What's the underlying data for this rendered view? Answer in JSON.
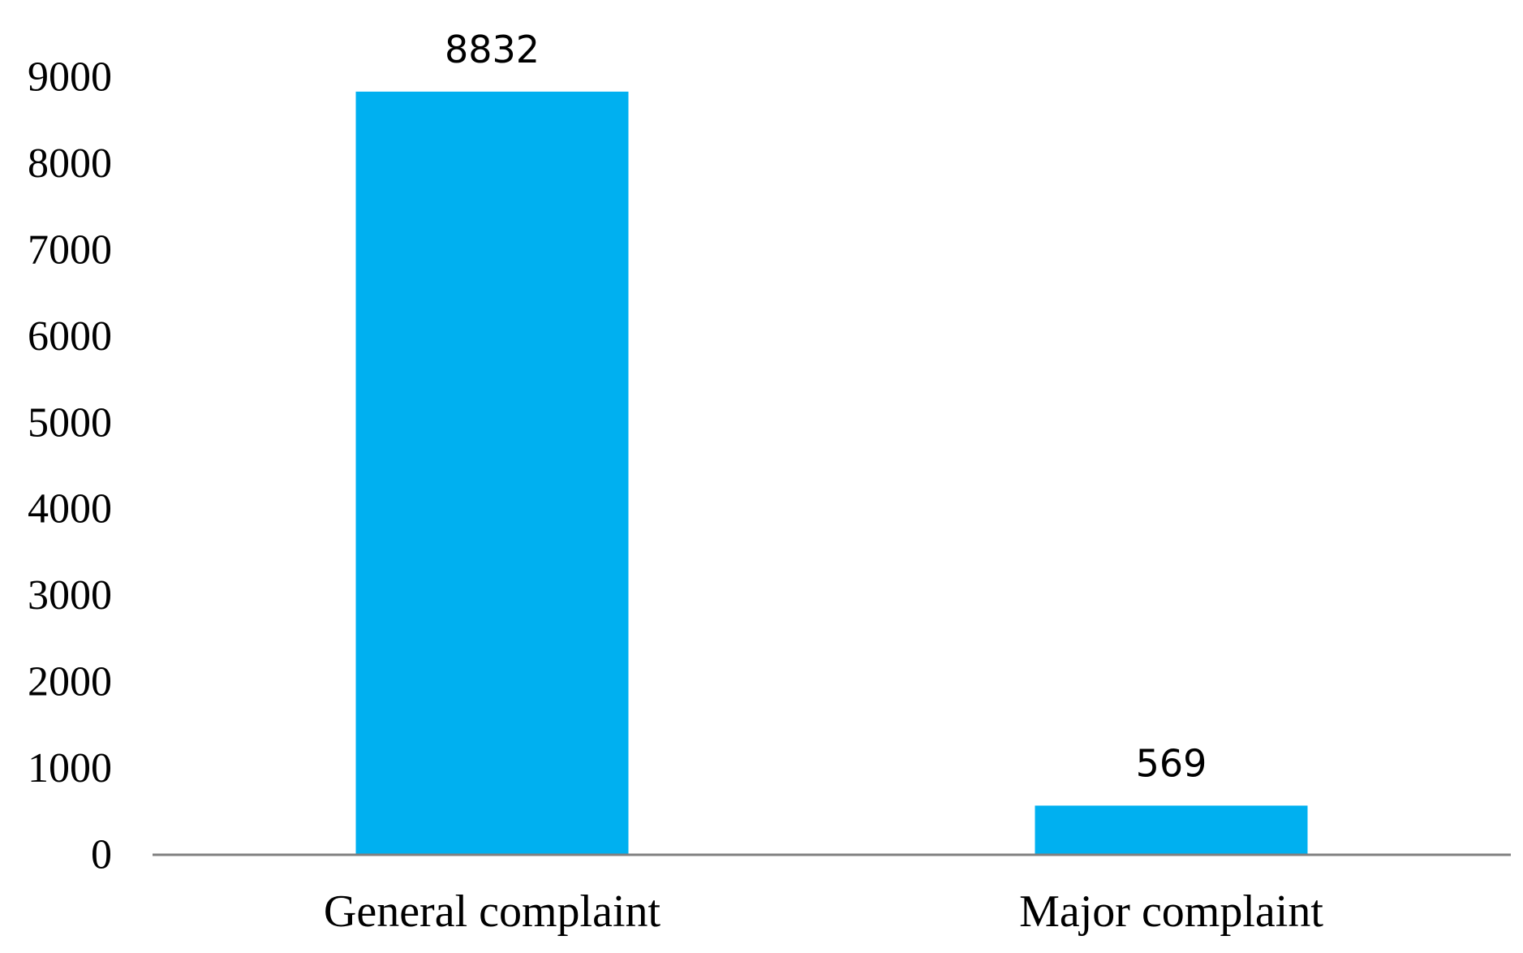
{
  "chart_data": {
    "type": "bar",
    "title": "",
    "xlabel": "",
    "ylabel": "",
    "categories": [
      "General complaint",
      "Major complaint"
    ],
    "values": [
      8832,
      569
    ],
    "data_labels": [
      "8832",
      "569"
    ],
    "ylim": [
      0,
      9000
    ],
    "yticks": [
      0,
      1000,
      2000,
      3000,
      4000,
      5000,
      6000,
      7000,
      8000,
      9000
    ],
    "ytick_labels": [
      "0",
      "1000",
      "2000",
      "3000",
      "4000",
      "5000",
      "6000",
      "7000",
      "8000",
      "9000"
    ],
    "grid": false,
    "legend": "none",
    "colors": {
      "bar": "#00B0F0",
      "axis": "#808080",
      "text": "#000000"
    }
  }
}
